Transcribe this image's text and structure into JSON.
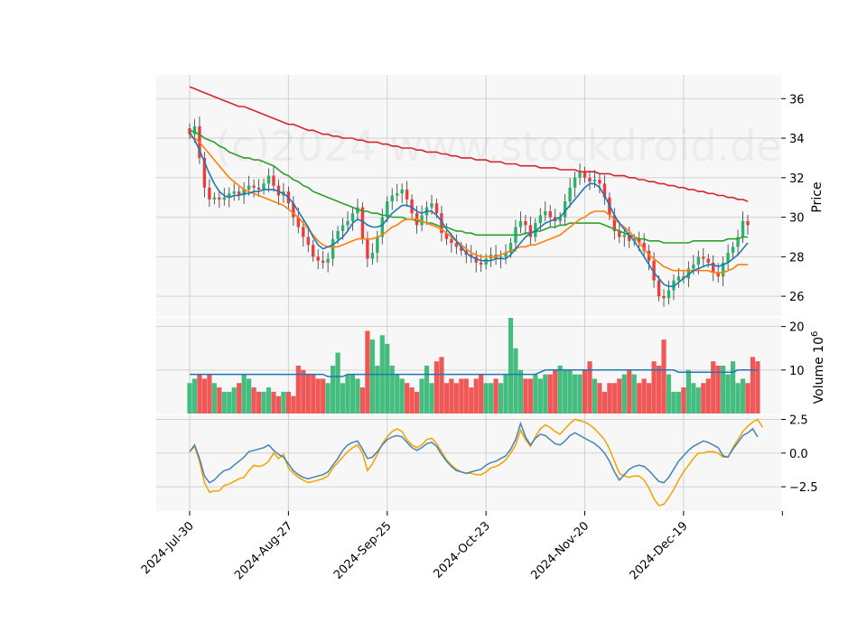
{
  "chart_data": {
    "type": "candlestick",
    "watermark": "(c)2024 www.stockdroid.de",
    "colors": {
      "up": "#26b36a",
      "down": "#ef3b3b",
      "ma_short": "#1f77b4",
      "ma_mid": "#ff7f0e",
      "ma_long": "#2ca02c",
      "ma_200": "#d62728",
      "macd": "#4682b4",
      "signal": "#f5a100",
      "grid": "#d2d2d2",
      "panel_bg": "#f7f7f7"
    },
    "x_ticks": [
      "2024-Jul-30",
      "2024-Aug-27",
      "2024-Sep-25",
      "2024-Oct-23",
      "2024-Nov-20",
      "2024-Dec-19"
    ],
    "price_panel": {
      "ylabel": "Price",
      "ylim": [
        25.0,
        37.2
      ],
      "y_ticks": [
        "26",
        "28",
        "30",
        "32",
        "34",
        "36"
      ],
      "close": [
        34.2,
        34.6,
        33.0,
        31.5,
        30.9,
        31.0,
        30.9,
        31.0,
        31.2,
        31.3,
        31.1,
        31.4,
        31.6,
        31.5,
        31.4,
        31.7,
        32.1,
        31.6,
        31.1,
        31.3,
        30.7,
        30.0,
        29.5,
        29.0,
        28.6,
        28.0,
        27.8,
        27.7,
        27.9,
        28.9,
        29.3,
        29.6,
        29.8,
        30.2,
        30.5,
        28.9,
        27.9,
        28.2,
        29.0,
        30.0,
        30.8,
        31.1,
        31.2,
        31.4,
        30.9,
        30.2,
        29.6,
        30.1,
        30.5,
        30.7,
        30.2,
        29.2,
        28.9,
        28.7,
        28.5,
        28.3,
        28.1,
        28.0,
        27.7,
        27.6,
        27.9,
        28.1,
        27.9,
        28.0,
        28.2,
        28.7,
        29.5,
        29.8,
        29.6,
        29.0,
        29.7,
        30.1,
        30.3,
        30.0,
        29.8,
        30.0,
        30.8,
        31.5,
        32.0,
        32.3,
        32.0,
        31.8,
        31.9,
        31.7,
        31.0,
        30.1,
        29.3,
        29.0,
        29.1,
        28.8,
        28.9,
        28.7,
        28.3,
        27.8,
        26.8,
        26.0,
        25.9,
        26.3,
        26.8,
        27.0,
        26.9,
        27.4,
        27.6,
        28.0,
        27.9,
        27.7,
        27.2,
        27.0,
        27.7,
        28.2,
        28.5,
        29.0,
        29.8,
        29.6
      ],
      "ma_short": [
        34.3,
        33.9,
        33.4,
        32.8,
        32.2,
        31.7,
        31.3,
        31.1,
        31.0,
        31.1,
        31.1,
        31.2,
        31.2,
        31.3,
        31.3,
        31.4,
        31.4,
        31.4,
        31.3,
        31.2,
        31.0,
        30.7,
        30.3,
        29.9,
        29.5,
        29.0,
        28.6,
        28.4,
        28.5,
        28.6,
        28.8,
        29.0,
        29.3,
        29.7,
        29.9,
        29.8,
        29.6,
        29.5,
        29.5,
        29.6,
        29.9,
        30.2,
        30.4,
        30.6,
        30.6,
        30.5,
        30.3,
        30.2,
        30.3,
        30.3,
        30.1,
        29.8,
        29.4,
        29.1,
        28.8,
        28.5,
        28.2,
        28.0,
        27.9,
        27.8,
        27.8,
        27.8,
        27.9,
        27.9,
        27.9,
        28.1,
        28.4,
        28.7,
        29.0,
        29.2,
        29.3,
        29.5,
        29.7,
        29.8,
        29.9,
        30.0,
        30.3,
        30.6,
        30.9,
        31.2,
        31.5,
        31.7,
        31.7,
        31.5,
        31.1,
        30.6,
        30.1,
        29.7,
        29.4,
        29.1,
        28.8,
        28.4,
        28.0,
        27.6,
        27.2,
        26.9,
        26.6,
        26.5,
        26.5,
        26.7,
        26.9,
        27.1,
        27.3,
        27.4,
        27.5,
        27.6,
        27.6,
        27.5,
        27.6,
        27.7,
        27.9,
        28.1,
        28.4,
        28.7
      ],
      "ma_mid": [
        34.1,
        34.0,
        33.8,
        33.5,
        33.2,
        32.9,
        32.6,
        32.3,
        32.0,
        31.8,
        31.6,
        31.4,
        31.3,
        31.2,
        31.1,
        31.0,
        30.9,
        30.8,
        30.7,
        30.6,
        30.4,
        30.2,
        30.0,
        29.7,
        29.4,
        29.1,
        28.8,
        28.6,
        28.5,
        28.5,
        28.5,
        28.6,
        28.7,
        28.8,
        28.9,
        28.9,
        28.9,
        28.9,
        29.0,
        29.1,
        29.3,
        29.5,
        29.6,
        29.8,
        29.9,
        29.9,
        29.9,
        29.8,
        29.7,
        29.6,
        29.5,
        29.4,
        29.2,
        29.0,
        28.8,
        28.6,
        28.4,
        28.2,
        28.1,
        28.0,
        28.0,
        28.0,
        28.0,
        28.1,
        28.2,
        28.3,
        28.4,
        28.5,
        28.5,
        28.6,
        28.6,
        28.7,
        28.8,
        28.9,
        29.0,
        29.1,
        29.3,
        29.5,
        29.7,
        29.9,
        30.0,
        30.2,
        30.3,
        30.3,
        30.3,
        30.1,
        29.9,
        29.7,
        29.5,
        29.3,
        29.0,
        28.7,
        28.4,
        28.1,
        27.9,
        27.7,
        27.5,
        27.4,
        27.3,
        27.3,
        27.3,
        27.3,
        27.3,
        27.3,
        27.3,
        27.3,
        27.2,
        27.2,
        27.2,
        27.3,
        27.4,
        27.6,
        27.6,
        27.6
      ],
      "ma_long": [
        34.4,
        34.3,
        34.2,
        34.0,
        33.9,
        33.8,
        33.6,
        33.5,
        33.3,
        33.2,
        33.1,
        33.0,
        33.0,
        32.9,
        32.9,
        32.8,
        32.7,
        32.6,
        32.4,
        32.2,
        32.1,
        31.9,
        31.8,
        31.6,
        31.5,
        31.3,
        31.2,
        31.1,
        31.0,
        30.9,
        30.8,
        30.7,
        30.6,
        30.5,
        30.4,
        30.3,
        30.3,
        30.2,
        30.2,
        30.1,
        30.1,
        30.0,
        30.0,
        30.0,
        29.9,
        29.9,
        29.8,
        29.8,
        29.7,
        29.7,
        29.6,
        29.5,
        29.5,
        29.4,
        29.3,
        29.3,
        29.2,
        29.2,
        29.1,
        29.1,
        29.1,
        29.1,
        29.1,
        29.1,
        29.1,
        29.1,
        29.1,
        29.1,
        29.2,
        29.2,
        29.3,
        29.3,
        29.4,
        29.5,
        29.5,
        29.6,
        29.6,
        29.7,
        29.7,
        29.7,
        29.7,
        29.7,
        29.7,
        29.7,
        29.6,
        29.5,
        29.4,
        29.3,
        29.2,
        29.1,
        29.0,
        28.9,
        28.9,
        28.8,
        28.8,
        28.8,
        28.7,
        28.7,
        28.7,
        28.7,
        28.7,
        28.7,
        28.8,
        28.8,
        28.8,
        28.8,
        28.8,
        28.8,
        28.8,
        28.9,
        28.9,
        28.9,
        29.0,
        29.0
      ],
      "ma_200": [
        36.6,
        36.5,
        36.4,
        36.3,
        36.2,
        36.1,
        36.0,
        35.9,
        35.8,
        35.7,
        35.6,
        35.6,
        35.5,
        35.4,
        35.3,
        35.2,
        35.1,
        35.0,
        34.9,
        34.8,
        34.7,
        34.7,
        34.6,
        34.5,
        34.4,
        34.4,
        34.3,
        34.2,
        34.2,
        34.1,
        34.1,
        34.0,
        34.0,
        34.0,
        33.9,
        33.9,
        33.8,
        33.8,
        33.8,
        33.7,
        33.7,
        33.6,
        33.6,
        33.5,
        33.5,
        33.5,
        33.4,
        33.4,
        33.3,
        33.3,
        33.3,
        33.2,
        33.2,
        33.1,
        33.1,
        33.0,
        33.0,
        33.0,
        32.9,
        32.9,
        32.9,
        32.8,
        32.8,
        32.8,
        32.7,
        32.7,
        32.7,
        32.6,
        32.6,
        32.6,
        32.6,
        32.5,
        32.5,
        32.5,
        32.5,
        32.4,
        32.4,
        32.4,
        32.4,
        32.3,
        32.3,
        32.3,
        32.3,
        32.2,
        32.2,
        32.2,
        32.1,
        32.1,
        32.1,
        32.0,
        32.0,
        31.9,
        31.9,
        31.8,
        31.8,
        31.7,
        31.7,
        31.6,
        31.6,
        31.5,
        31.5,
        31.4,
        31.4,
        31.3,
        31.3,
        31.2,
        31.2,
        31.1,
        31.1,
        31.0,
        31.0,
        30.9,
        30.9,
        30.8
      ]
    },
    "volume_panel": {
      "ylabel": "Volume  10^6",
      "ylim": [
        0,
        22
      ],
      "y_ticks": [
        "10",
        "20"
      ],
      "volume": [
        7,
        8,
        9,
        8,
        9,
        7,
        6,
        5,
        5,
        6,
        7,
        9,
        8,
        6,
        5,
        5,
        6,
        5,
        4,
        5,
        5,
        4,
        11,
        10,
        9,
        9,
        8,
        8,
        7,
        11,
        14,
        7,
        9,
        9,
        8,
        6,
        19,
        17,
        11,
        18,
        16,
        11,
        9,
        8,
        7,
        6,
        5,
        8,
        11,
        7,
        12,
        13,
        7,
        8,
        7,
        8,
        8,
        6,
        8,
        9,
        7,
        7,
        8,
        7,
        9,
        22,
        15,
        10,
        8,
        8,
        9,
        8,
        9,
        9,
        10,
        11,
        10,
        10,
        9,
        9,
        10,
        12,
        8,
        7,
        5,
        7,
        7,
        8,
        9,
        10,
        9,
        7,
        8,
        7,
        12,
        11,
        17,
        9,
        5,
        5,
        6,
        10,
        7,
        6,
        7,
        8,
        12,
        11,
        11,
        9,
        12,
        7,
        8,
        7,
        13,
        12
      ],
      "direction": [
        1,
        1,
        -1,
        -1,
        -1,
        1,
        -1,
        1,
        1,
        1,
        -1,
        1,
        1,
        -1,
        -1,
        1,
        1,
        -1,
        -1,
        1,
        -1,
        -1,
        -1,
        -1,
        -1,
        -1,
        -1,
        -1,
        1,
        1,
        1,
        1,
        1,
        1,
        1,
        -1,
        -1,
        1,
        1,
        1,
        1,
        1,
        1,
        1,
        -1,
        -1,
        -1,
        1,
        1,
        1,
        -1,
        -1,
        -1,
        -1,
        -1,
        -1,
        -1,
        -1,
        -1,
        -1,
        1,
        1,
        -1,
        1,
        1,
        1,
        1,
        1,
        -1,
        -1,
        1,
        1,
        1,
        -1,
        -1,
        1,
        1,
        1,
        1,
        1,
        -1,
        -1,
        1,
        -1,
        -1,
        -1,
        -1,
        -1,
        1,
        -1,
        1,
        -1,
        -1,
        -1,
        -1,
        -1,
        -1,
        1,
        1,
        1,
        -1,
        1,
        1,
        1,
        -1,
        -1,
        -1,
        -1,
        1,
        1,
        1,
        1,
        1,
        -1
      ],
      "avg_volume": [
        9,
        9,
        9,
        9,
        9,
        9,
        9,
        9,
        9,
        9,
        9,
        9,
        9,
        9,
        9,
        9,
        9,
        9,
        9,
        9,
        9,
        9,
        9,
        9,
        9,
        9,
        9,
        9,
        8.5,
        8.5,
        8.5,
        8.5,
        9,
        9,
        9,
        9,
        9,
        9,
        9,
        9,
        9,
        9,
        9,
        9,
        9,
        9,
        9,
        9,
        9,
        9,
        9,
        9,
        9,
        9,
        9,
        9,
        9,
        9,
        9,
        9,
        9,
        9,
        9,
        9,
        9,
        9,
        9,
        9,
        9,
        9,
        9,
        9.5,
        10,
        10,
        10,
        10,
        10,
        10,
        10,
        10,
        10,
        10,
        10,
        10,
        10,
        10,
        10,
        10,
        10,
        10,
        10,
        10,
        10,
        10,
        10,
        10,
        10,
        10,
        10,
        9.5,
        9.5,
        9.5,
        9.5,
        9.5,
        9.5,
        9.5,
        9.5,
        9.5,
        9.5,
        9.5,
        9.5,
        10,
        10,
        10,
        10,
        10
      ]
    },
    "macd_panel": {
      "ylim": [
        -4.3,
        2.8
      ],
      "y_ticks": [
        "2.5",
        "0.0",
        "−2.5"
      ],
      "macd": [
        0.1,
        0.6,
        -0.4,
        -1.7,
        -2.2,
        -2.0,
        -1.6,
        -1.3,
        -1.2,
        -0.9,
        -0.6,
        -0.3,
        0.1,
        0.2,
        0.3,
        0.4,
        0.6,
        0.2,
        -0.1,
        -0.3,
        -0.8,
        -1.3,
        -1.6,
        -1.8,
        -1.9,
        -1.8,
        -1.7,
        -1.6,
        -1.4,
        -0.9,
        -0.4,
        0.2,
        0.6,
        0.8,
        0.9,
        0.3,
        -0.4,
        -0.3,
        0.1,
        0.6,
        1.0,
        1.2,
        1.3,
        1.2,
        0.8,
        0.4,
        0.2,
        0.4,
        0.7,
        0.8,
        0.5,
        -0.1,
        -0.6,
        -1.0,
        -1.3,
        -1.4,
        -1.5,
        -1.4,
        -1.3,
        -1.2,
        -0.9,
        -0.7,
        -0.6,
        -0.4,
        -0.2,
        0.3,
        1.0,
        2.2,
        1.2,
        0.6,
        1.1,
        1.4,
        1.3,
        1.0,
        0.7,
        0.6,
        0.9,
        1.3,
        1.5,
        1.3,
        1.1,
        0.9,
        0.7,
        0.4,
        0.0,
        -0.6,
        -1.4,
        -2.0,
        -1.6,
        -1.2,
        -1.0,
        -0.9,
        -1.0,
        -1.3,
        -1.7,
        -2.1,
        -2.2,
        -1.8,
        -1.2,
        -0.6,
        -0.2,
        0.2,
        0.5,
        0.7,
        0.9,
        0.8,
        0.6,
        0.4,
        -0.2,
        -0.3,
        0.3,
        0.8,
        1.3,
        1.5,
        1.8,
        1.2
      ],
      "signal": [
        0.1,
        0.5,
        -0.6,
        -2.2,
        -2.9,
        -2.8,
        -2.8,
        -2.4,
        -2.3,
        -2.1,
        -1.9,
        -1.8,
        -1.3,
        -0.9,
        -1.0,
        -0.9,
        -0.6,
        0.0,
        -0.4,
        -0.1,
        -1.1,
        -1.5,
        -1.8,
        -2.0,
        -2.2,
        -2.1,
        -2.0,
        -1.9,
        -1.7,
        -1.1,
        -0.7,
        -0.3,
        0.1,
        0.4,
        0.6,
        0.0,
        -1.3,
        -0.8,
        -0.1,
        0.7,
        1.2,
        1.6,
        1.8,
        1.6,
        1.0,
        0.6,
        0.4,
        0.6,
        1.0,
        1.1,
        0.7,
        0.1,
        -0.5,
        -0.9,
        -1.2,
        -1.4,
        -1.5,
        -1.5,
        -1.6,
        -1.6,
        -1.4,
        -1.1,
        -1.0,
        -0.8,
        -0.5,
        0.0,
        0.6,
        1.7,
        1.0,
        0.5,
        1.2,
        1.8,
        2.1,
        1.9,
        1.6,
        1.4,
        1.8,
        2.2,
        2.5,
        2.4,
        2.3,
        2.1,
        1.8,
        1.4,
        1.0,
        0.3,
        -0.6,
        -1.5,
        -1.7,
        -1.8,
        -1.7,
        -1.7,
        -2.0,
        -2.6,
        -3.4,
        -3.9,
        -3.8,
        -3.3,
        -2.7,
        -2.0,
        -1.4,
        -0.9,
        -0.4,
        0.0,
        0.0,
        0.1,
        0.1,
        0.0,
        -0.3,
        -0.3,
        0.4,
        1.0,
        1.6,
        2.0,
        2.3,
        2.5,
        1.9
      ]
    }
  }
}
